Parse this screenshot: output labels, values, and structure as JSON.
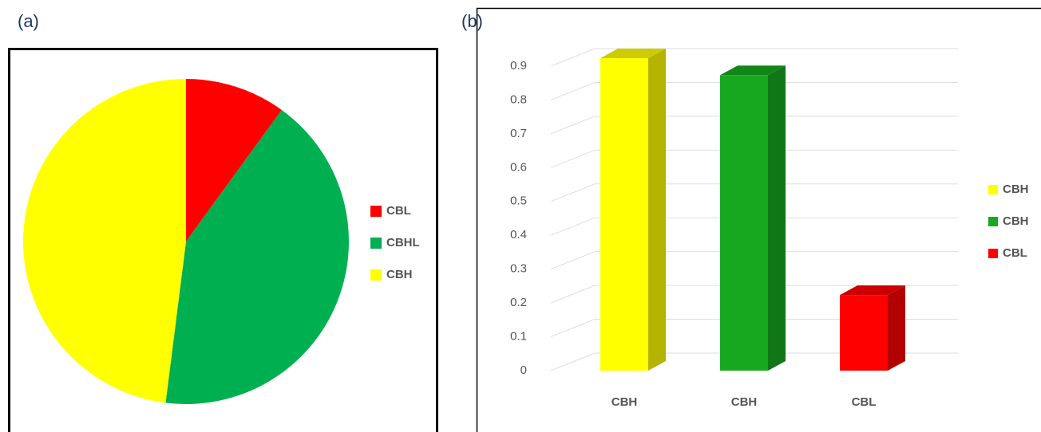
{
  "chart_data": [
    {
      "type": "pie",
      "label": "(a)",
      "categories": [
        "CBL",
        "CBHL",
        "CBH"
      ],
      "values": [
        10,
        42,
        48
      ],
      "colors": [
        "#ff0000",
        "#00b050",
        "#ffff00"
      ]
    },
    {
      "type": "bar3d",
      "label": "(b)",
      "categories": [
        "CBH",
        "CBH",
        "CBL"
      ],
      "values": [
        0.9,
        0.85,
        0.2
      ],
      "colors": [
        "#ffff00",
        "#17a81f",
        "#ff0000"
      ],
      "ylim": [
        0,
        0.9
      ],
      "yticks": [
        0,
        0.1,
        0.2,
        0.3,
        0.4,
        0.5,
        0.6,
        0.7,
        0.8,
        0.9
      ],
      "grid": true
    }
  ]
}
